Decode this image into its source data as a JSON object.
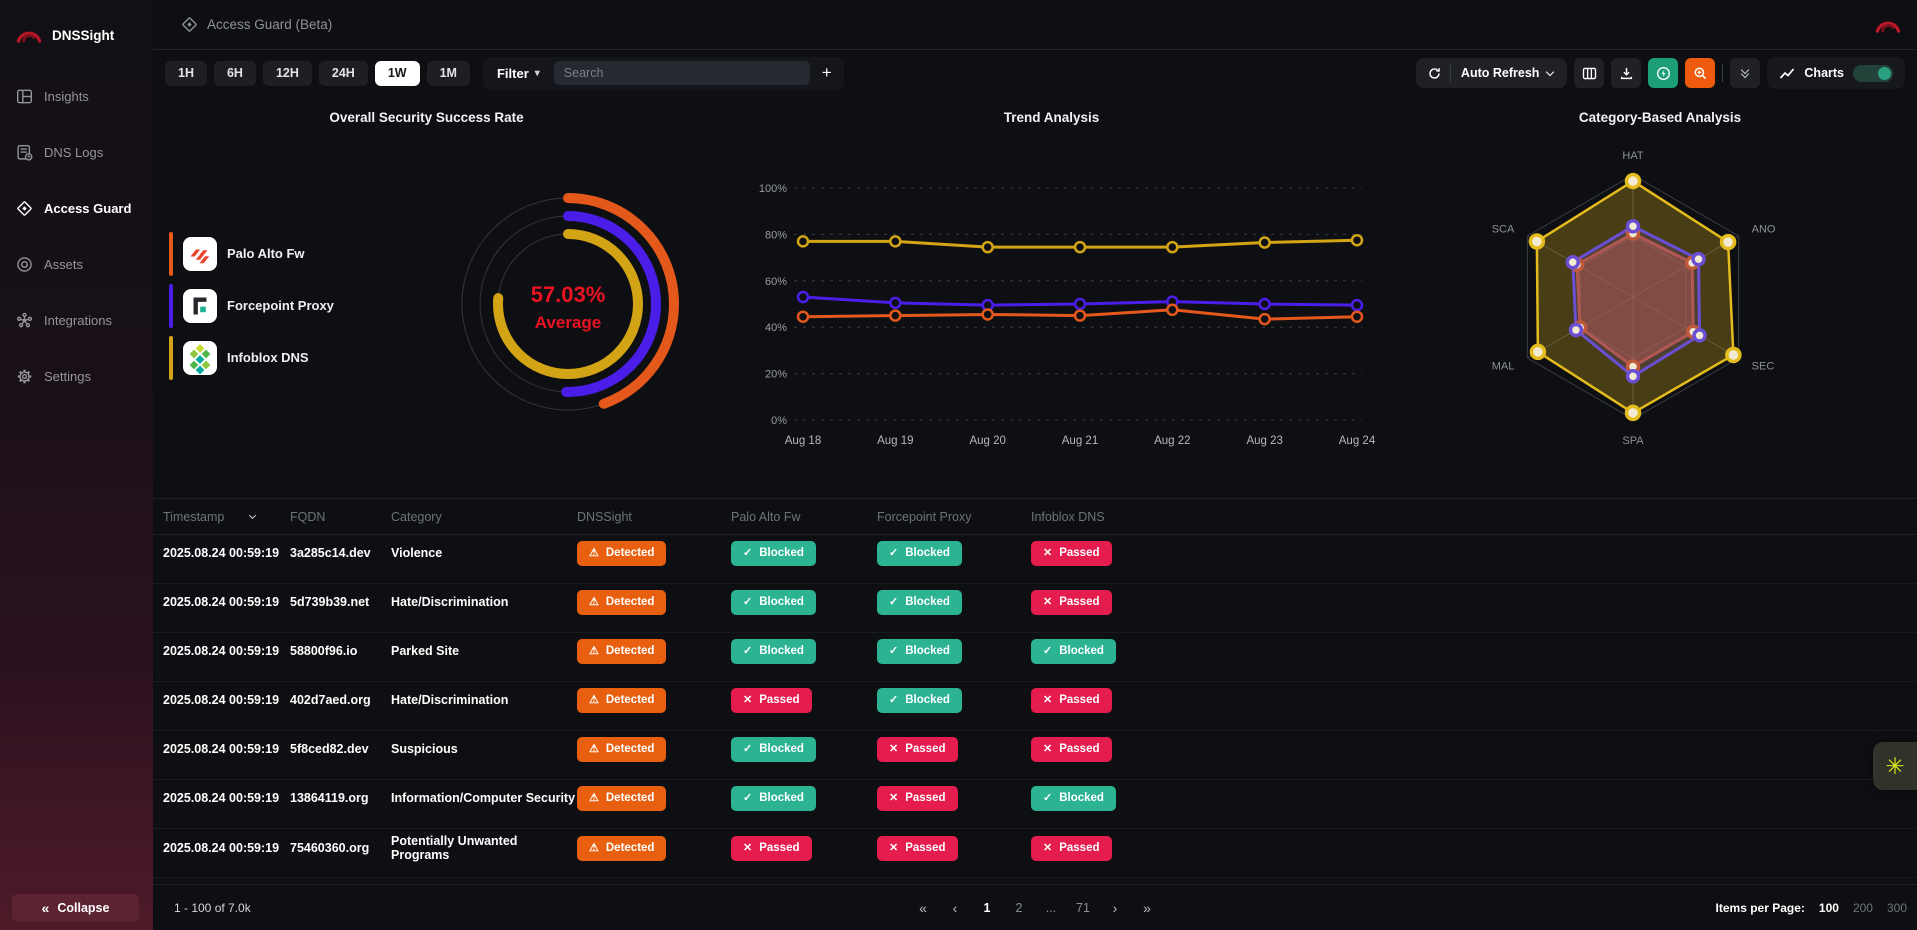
{
  "app": {
    "name": "DNSSight",
    "page_title": "Access Guard (Beta)"
  },
  "sidebar": {
    "items": [
      {
        "label": "Insights",
        "icon": "insights-icon",
        "active": false
      },
      {
        "label": "DNS Logs",
        "icon": "dns-logs-icon",
        "active": false
      },
      {
        "label": "Access Guard",
        "icon": "access-guard-icon",
        "active": true
      },
      {
        "label": "Assets",
        "icon": "assets-icon",
        "active": false
      },
      {
        "label": "Integrations",
        "icon": "integrations-icon",
        "active": false
      },
      {
        "label": "Settings",
        "icon": "settings-icon",
        "active": false
      }
    ],
    "collapse_label": "Collapse"
  },
  "toolbar": {
    "time_ranges": [
      "1H",
      "6H",
      "12H",
      "24H",
      "1W",
      "1M"
    ],
    "active_range": "1W",
    "filter_label": "Filter",
    "search_placeholder": "Search",
    "add_label": "+",
    "auto_refresh_label": "Auto Refresh",
    "charts_toggle_label": "Charts",
    "charts_toggle_on": true
  },
  "icons": {
    "collapse": "«",
    "filter_caret": "▾",
    "fab": "✳",
    "pager_first": "«",
    "pager_prev": "‹",
    "pager_next": "›",
    "pager_last": "»",
    "status": {
      "detected": "⚠",
      "blocked": "✓",
      "passed": "✕"
    }
  },
  "colors": {
    "accent_red": "#ea1322",
    "detected": "#e8600f",
    "blocked": "#2bb392",
    "passed": "#e51d4e",
    "palo_alto": "#e5581c",
    "forcepoint": "#4a1ee8",
    "infoblox": "#d2a416"
  },
  "chart_data": [
    {
      "type": "gauge",
      "title": "Overall Security Success Rate",
      "center_value": "57.03%",
      "center_label": "Average",
      "rings": [
        {
          "name": "Palo Alto Fw",
          "value": 44.5,
          "color": "#e5581c"
        },
        {
          "name": "Forcepoint Proxy",
          "value": 50.3,
          "color": "#4a1ee8"
        },
        {
          "name": "Infoblox DNS",
          "value": 76.3,
          "color": "#d2a416"
        }
      ],
      "legend": [
        {
          "label": "Palo Alto Fw",
          "color": "#e5581c",
          "logo": "palo-alto-logo"
        },
        {
          "label": "Forcepoint Proxy",
          "color": "#4a1ee8",
          "logo": "forcepoint-logo"
        },
        {
          "label": "Infoblox DNS",
          "color": "#d2a416",
          "logo": "infoblox-logo"
        }
      ]
    },
    {
      "type": "line",
      "title": "Trend Analysis",
      "x": [
        "Aug 18",
        "Aug 19",
        "Aug 20",
        "Aug 21",
        "Aug 22",
        "Aug 23",
        "Aug 24"
      ],
      "ylim": [
        0,
        100
      ],
      "yticks": [
        0,
        20,
        40,
        60,
        80,
        100
      ],
      "ytick_suffix": "%",
      "grid": true,
      "series": [
        {
          "name": "Infoblox DNS",
          "color": "#d2a416",
          "values": [
            77,
            77,
            74.5,
            74.5,
            74.5,
            76.5,
            77.5
          ]
        },
        {
          "name": "Forcepoint Proxy",
          "color": "#4a1ee8",
          "values": [
            53,
            50.5,
            49.5,
            50,
            51,
            50,
            49.5
          ]
        },
        {
          "name": "Palo Alto Fw",
          "color": "#e5581c",
          "values": [
            44.5,
            45,
            45.5,
            45,
            47.5,
            43.5,
            44.5
          ]
        }
      ]
    },
    {
      "type": "radar",
      "title": "Category-Based Analysis",
      "axes": [
        "HAT",
        "ANO",
        "SEC",
        "SPA",
        "MAL",
        "SCA"
      ],
      "scale_max": 100,
      "series": [
        {
          "name": "Infoblox DNS",
          "color": "#e5bc1d",
          "values": [
            95,
            90,
            95,
            95,
            90,
            91
          ]
        },
        {
          "name": "Forcepoint Proxy",
          "color": "#6a4fd4",
          "values": [
            58,
            62,
            63,
            65,
            54,
            57
          ]
        },
        {
          "name": "Palo Alto Fw",
          "color": "#bf5a3a",
          "values": [
            52,
            56,
            57,
            57,
            50,
            53
          ]
        }
      ]
    }
  ],
  "table": {
    "headers": [
      "Timestamp",
      "FQDN",
      "Category",
      "DNSSight",
      "Palo Alto Fw",
      "Forcepoint Proxy",
      "Infoblox DNS"
    ],
    "status_labels": {
      "detected": "Detected",
      "blocked": "Blocked",
      "passed": "Passed"
    },
    "rows": [
      {
        "timestamp": "2025.08.24 00:59:19",
        "fqdn": "3a285c14.dev",
        "category": "Violence",
        "statuses": [
          "detected",
          "blocked",
          "blocked",
          "passed"
        ]
      },
      {
        "timestamp": "2025.08.24 00:59:19",
        "fqdn": "5d739b39.net",
        "category": "Hate/Discrimination",
        "statuses": [
          "detected",
          "blocked",
          "blocked",
          "passed"
        ]
      },
      {
        "timestamp": "2025.08.24 00:59:19",
        "fqdn": "58800f96.io",
        "category": "Parked Site",
        "statuses": [
          "detected",
          "blocked",
          "blocked",
          "blocked"
        ]
      },
      {
        "timestamp": "2025.08.24 00:59:19",
        "fqdn": "402d7aed.org",
        "category": "Hate/Discrimination",
        "statuses": [
          "detected",
          "passed",
          "blocked",
          "passed"
        ]
      },
      {
        "timestamp": "2025.08.24 00:59:19",
        "fqdn": "5f8ced82.dev",
        "category": "Suspicious",
        "statuses": [
          "detected",
          "blocked",
          "passed",
          "passed"
        ]
      },
      {
        "timestamp": "2025.08.24 00:59:19",
        "fqdn": "13864119.org",
        "category": "Information/Computer Security",
        "statuses": [
          "detected",
          "blocked",
          "passed",
          "blocked"
        ]
      },
      {
        "timestamp": "2025.08.24 00:59:19",
        "fqdn": "75460360.org",
        "category": "Potentially Unwanted Programs",
        "statuses": [
          "detected",
          "passed",
          "passed",
          "passed"
        ]
      }
    ]
  },
  "pagination": {
    "range_text": "1 - 100 of 7.0k",
    "pages": [
      "1",
      "2",
      "...",
      "71"
    ],
    "current_page": "1",
    "items_per_page_label": "Items per Page:",
    "items_per_page_options": [
      "100",
      "200",
      "300"
    ],
    "items_per_page_selected": "100"
  }
}
